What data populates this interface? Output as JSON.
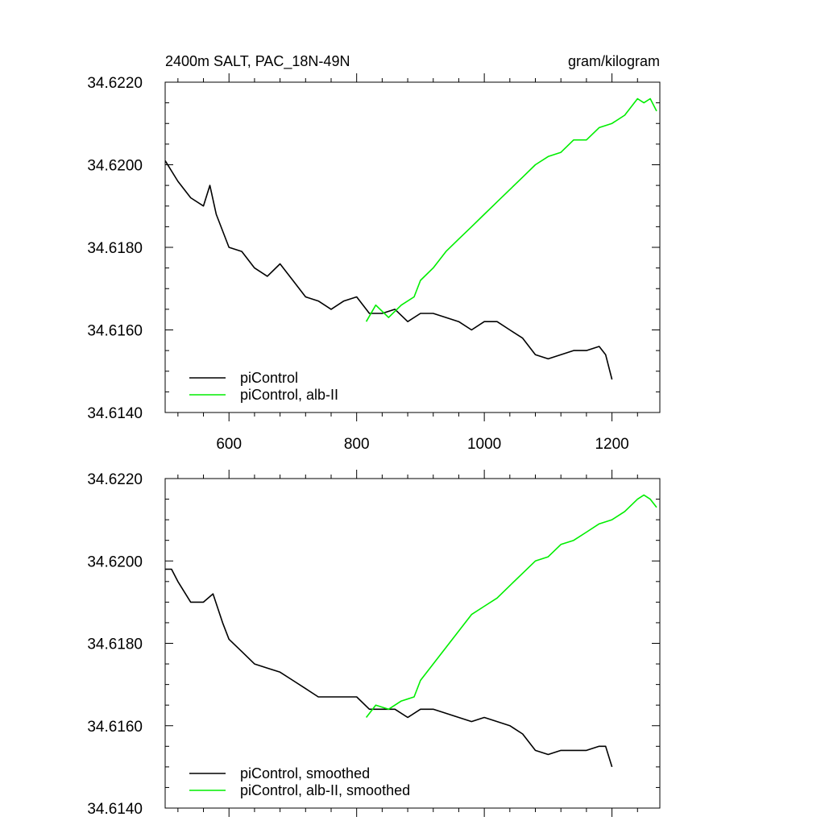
{
  "chart_data": [
    {
      "type": "line",
      "title": "2400m SALT, PAC_18N-49N",
      "units": "gram/kilogram",
      "xlabel": "",
      "ylabel": "",
      "xlim": [
        500,
        1275
      ],
      "ylim": [
        34.614,
        34.622
      ],
      "x_ticks": [
        600,
        800,
        1000,
        1200
      ],
      "x_tick_labels": [
        "600",
        "800",
        "1000",
        "1200"
      ],
      "y_ticks": [
        34.614,
        34.616,
        34.618,
        34.62,
        34.622
      ],
      "y_tick_labels": [
        "34.6140",
        "34.6160",
        "34.6180",
        "34.6200",
        "34.6220"
      ],
      "grid": false,
      "legend_position": "bottom-left",
      "series": [
        {
          "name": "piControl",
          "color": "#000000",
          "x": [
            500,
            520,
            540,
            560,
            570,
            580,
            600,
            620,
            640,
            660,
            680,
            700,
            720,
            740,
            760,
            780,
            800,
            820,
            840,
            860,
            880,
            900,
            920,
            940,
            960,
            980,
            1000,
            1020,
            1040,
            1060,
            1080,
            1100,
            1120,
            1140,
            1160,
            1180,
            1190,
            1200
          ],
          "y": [
            34.6201,
            34.6196,
            34.6192,
            34.619,
            34.6195,
            34.6188,
            34.618,
            34.6179,
            34.6175,
            34.6173,
            34.6176,
            34.6172,
            34.6168,
            34.6167,
            34.6165,
            34.6167,
            34.6168,
            34.6164,
            34.6164,
            34.6165,
            34.6162,
            34.6164,
            34.6164,
            34.6163,
            34.6162,
            34.616,
            34.6162,
            34.6162,
            34.616,
            34.6158,
            34.6154,
            34.6153,
            34.6154,
            34.6155,
            34.6155,
            34.6156,
            34.6154,
            34.6148
          ]
        },
        {
          "name": "piControl, alb-II",
          "color": "#00ee00",
          "x": [
            815,
            830,
            850,
            870,
            890,
            900,
            920,
            940,
            960,
            980,
            1000,
            1020,
            1040,
            1060,
            1080,
            1100,
            1120,
            1140,
            1160,
            1180,
            1200,
            1220,
            1240,
            1250,
            1260,
            1270
          ],
          "y": [
            34.6162,
            34.6166,
            34.6163,
            34.6166,
            34.6168,
            34.6172,
            34.6175,
            34.6179,
            34.6182,
            34.6185,
            34.6188,
            34.6191,
            34.6194,
            34.6197,
            34.62,
            34.6202,
            34.6203,
            34.6206,
            34.6206,
            34.6209,
            34.621,
            34.6212,
            34.6216,
            34.6215,
            34.6216,
            34.6213
          ]
        }
      ]
    },
    {
      "type": "line",
      "title": "",
      "units": "",
      "xlabel": "",
      "ylabel": "",
      "xlim": [
        500,
        1275
      ],
      "ylim": [
        34.614,
        34.622
      ],
      "x_ticks": [
        600,
        800,
        1000,
        1200
      ],
      "x_tick_labels": [],
      "y_ticks": [
        34.614,
        34.616,
        34.618,
        34.62,
        34.622
      ],
      "y_tick_labels": [
        "34.6140",
        "34.6160",
        "34.6180",
        "34.6200",
        "34.6220"
      ],
      "grid": false,
      "legend_position": "bottom-left",
      "series": [
        {
          "name": "piControl, smoothed",
          "color": "#000000",
          "x": [
            500,
            510,
            520,
            540,
            560,
            575,
            590,
            600,
            620,
            640,
            660,
            680,
            700,
            720,
            740,
            760,
            780,
            800,
            820,
            840,
            860,
            880,
            900,
            920,
            940,
            960,
            980,
            1000,
            1020,
            1040,
            1060,
            1080,
            1100,
            1120,
            1140,
            1160,
            1180,
            1190,
            1200
          ],
          "y": [
            34.6198,
            34.6198,
            34.6195,
            34.619,
            34.619,
            34.6192,
            34.6185,
            34.6181,
            34.6178,
            34.6175,
            34.6174,
            34.6173,
            34.6171,
            34.6169,
            34.6167,
            34.6167,
            34.6167,
            34.6167,
            34.6164,
            34.6164,
            34.6164,
            34.6162,
            34.6164,
            34.6164,
            34.6163,
            34.6162,
            34.6161,
            34.6162,
            34.6161,
            34.616,
            34.6158,
            34.6154,
            34.6153,
            34.6154,
            34.6154,
            34.6154,
            34.6155,
            34.6155,
            34.615
          ]
        },
        {
          "name": "piControl, alb-II, smoothed",
          "color": "#00ee00",
          "x": [
            815,
            830,
            850,
            870,
            890,
            900,
            920,
            940,
            960,
            980,
            1000,
            1020,
            1040,
            1060,
            1080,
            1100,
            1120,
            1140,
            1160,
            1180,
            1200,
            1220,
            1240,
            1250,
            1260,
            1270
          ],
          "y": [
            34.6162,
            34.6165,
            34.6164,
            34.6166,
            34.6167,
            34.6171,
            34.6175,
            34.6179,
            34.6183,
            34.6187,
            34.6189,
            34.6191,
            34.6194,
            34.6197,
            34.62,
            34.6201,
            34.6204,
            34.6205,
            34.6207,
            34.6209,
            34.621,
            34.6212,
            34.6215,
            34.6216,
            34.6215,
            34.6213
          ]
        }
      ]
    }
  ]
}
